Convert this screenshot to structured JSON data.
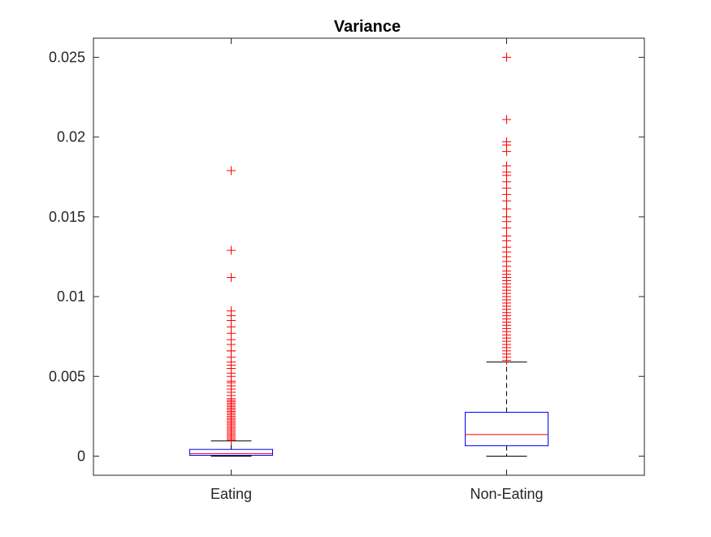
{
  "chart_data": {
    "type": "boxplot",
    "title": "Variance",
    "xlabel": "",
    "ylabel": "",
    "ylim": [
      -0.0012,
      0.0262
    ],
    "yticks": [
      0,
      0.005,
      0.01,
      0.015,
      0.02,
      0.025
    ],
    "ytick_labels": [
      "0",
      "0.005",
      "0.01",
      "0.015",
      "0.02",
      "0.025"
    ],
    "categories": [
      "Eating",
      "Non-Eating"
    ],
    "colors": {
      "box": "#0000ff",
      "median": "#ff0000",
      "whisker": "#000000",
      "outlier": "#ff0000",
      "axes": "#262626"
    },
    "boxes": [
      {
        "name": "Eating",
        "whisker_low": 0.0,
        "q1": 5e-05,
        "median": 0.00015,
        "q3": 0.00042,
        "whisker_high": 0.00095,
        "outliers": [
          0.0179,
          0.0129,
          0.0112,
          0.0091,
          0.0088,
          0.0085,
          0.0081,
          0.0077,
          0.0073,
          0.007,
          0.0066,
          0.0066,
          0.0062,
          0.0059,
          0.0057,
          0.0055,
          0.0052,
          0.005,
          0.0047,
          0.0046,
          0.0044,
          0.0042,
          0.004,
          0.0038,
          0.0036,
          0.0035,
          0.0034,
          0.0033,
          0.0032,
          0.0031,
          0.003,
          0.0029,
          0.0028,
          0.0027,
          0.0026,
          0.0025,
          0.0024,
          0.0023,
          0.0022,
          0.0021,
          0.002,
          0.0019,
          0.0018,
          0.0017,
          0.0016,
          0.0015,
          0.0014,
          0.0013,
          0.0012,
          0.0011,
          0.001
        ]
      },
      {
        "name": "Non-Eating",
        "whisker_low": 0.0,
        "q1": 0.00065,
        "median": 0.00135,
        "q3": 0.00275,
        "whisker_high": 0.0059,
        "outliers": [
          0.025,
          0.0211,
          0.0197,
          0.0195,
          0.0191,
          0.0182,
          0.0178,
          0.0176,
          0.0172,
          0.0168,
          0.0164,
          0.016,
          0.0155,
          0.015,
          0.0147,
          0.0143,
          0.0138,
          0.0135,
          0.0131,
          0.0128,
          0.0125,
          0.0122,
          0.0119,
          0.0116,
          0.0114,
          0.0112,
          0.011,
          0.0108,
          0.0106,
          0.0104,
          0.0102,
          0.01,
          0.0098,
          0.0096,
          0.0094,
          0.0092,
          0.009,
          0.0088,
          0.0086,
          0.0084,
          0.0082,
          0.008,
          0.0078,
          0.0076,
          0.0074,
          0.0072,
          0.007,
          0.0068,
          0.0066,
          0.0064,
          0.0062,
          0.006
        ]
      }
    ]
  }
}
